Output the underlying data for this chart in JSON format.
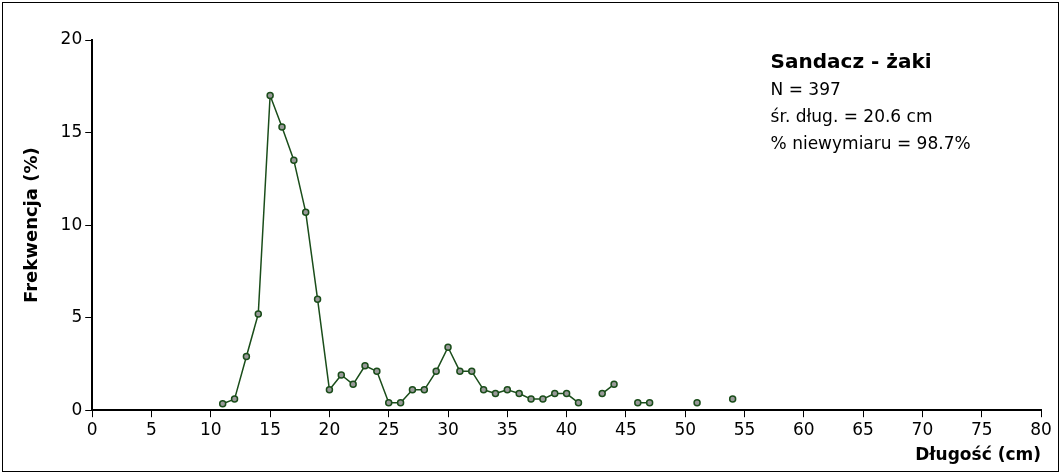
{
  "chart_data": {
    "type": "line",
    "title": "Sandacz - żaki",
    "xlabel": "Długość (cm)",
    "ylabel": "Frekwencja (%)",
    "annotations": [
      "N = 397",
      "śr. dług. = 20.6 cm",
      "% niewymiaru = 98.7%"
    ],
    "x": [
      11,
      12,
      13,
      14,
      15,
      16,
      17,
      18,
      19,
      20,
      21,
      22,
      23,
      24,
      25,
      26,
      27,
      28,
      29,
      30,
      31,
      32,
      33,
      34,
      35,
      36,
      37,
      38,
      39,
      40,
      41,
      42,
      43,
      44,
      45,
      46,
      47,
      48,
      49,
      50,
      51,
      52,
      53,
      54
    ],
    "series": [
      {
        "color": "#1a4d1a",
        "values": [
          0.35,
          0.6,
          2.9,
          5.2,
          17,
          15.3,
          13.5,
          10.7,
          6,
          1.1,
          1.9,
          1.4,
          2.4,
          2.1,
          0.4,
          0.4,
          1.1,
          1.1,
          2.1,
          3.4,
          2.1,
          2.1,
          1.1,
          0.9,
          1.1,
          0.9,
          0.6,
          0.6,
          0.9,
          0.9,
          0.4,
          null,
          0.9,
          1.4,
          null,
          0.4,
          0.4,
          null,
          null,
          null,
          0.4,
          null,
          null,
          0.6
        ]
      }
    ],
    "xlim": [
      0,
      80
    ],
    "xticks": [
      0,
      5,
      10,
      15,
      20,
      25,
      30,
      35,
      40,
      45,
      50,
      55,
      60,
      65,
      70,
      75,
      80
    ],
    "ylim": [
      0,
      20
    ],
    "yticks": [
      0,
      5,
      10,
      15,
      20
    ],
    "grid": false,
    "legend": false,
    "marker": "circle",
    "line_style": "solid"
  }
}
